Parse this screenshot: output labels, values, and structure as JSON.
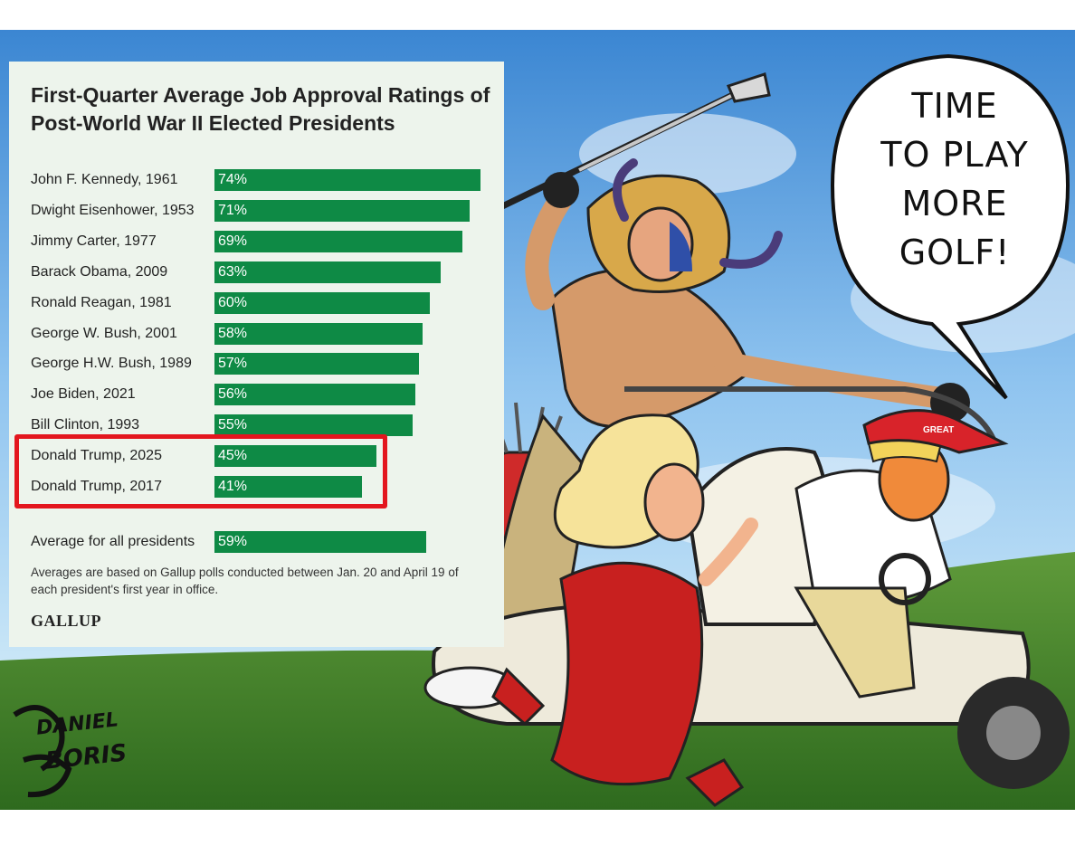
{
  "chart_data": {
    "type": "bar",
    "orientation": "horizontal",
    "title": "First-Quarter Average Job Approval Ratings of Post-World War II Elected Presidents",
    "categories": [
      "John F. Kennedy, 1961",
      "Dwight Eisenhower, 1953",
      "Jimmy Carter, 1977",
      "Barack Obama, 2009",
      "Ronald Reagan, 1981",
      "George W. Bush, 2001",
      "George H.W. Bush, 1989",
      "Joe Biden, 2021",
      "Bill Clinton, 1993",
      "Donald Trump, 2025",
      "Donald Trump, 2017"
    ],
    "values": [
      74,
      71,
      69,
      63,
      60,
      58,
      57,
      56,
      55,
      45,
      41
    ],
    "value_labels": [
      "74%",
      "71%",
      "69%",
      "63%",
      "60%",
      "58%",
      "57%",
      "56%",
      "55%",
      "45%",
      "41%"
    ],
    "unit": "%",
    "highlighted": [
      "Donald Trump, 2025",
      "Donald Trump, 2017"
    ],
    "average": {
      "label": "Average for all presidents",
      "value": 59,
      "value_label": "59%"
    },
    "footnote": "Averages are based on Gallup polls conducted between Jan. 20 and April 19 of each president's first year in office.",
    "source": "GALLUP",
    "bar_color": "#0e8a45",
    "highlight_color": "#e3161e",
    "xlim": [
      0,
      74
    ],
    "grid": false,
    "legend": "none"
  },
  "cartoon": {
    "speech_bubble": [
      "TIME",
      "TO PLAY",
      "MORE",
      "GOLF!"
    ],
    "signature": [
      "DANIEL",
      "BORIS"
    ],
    "hat_text": "GREAT"
  }
}
